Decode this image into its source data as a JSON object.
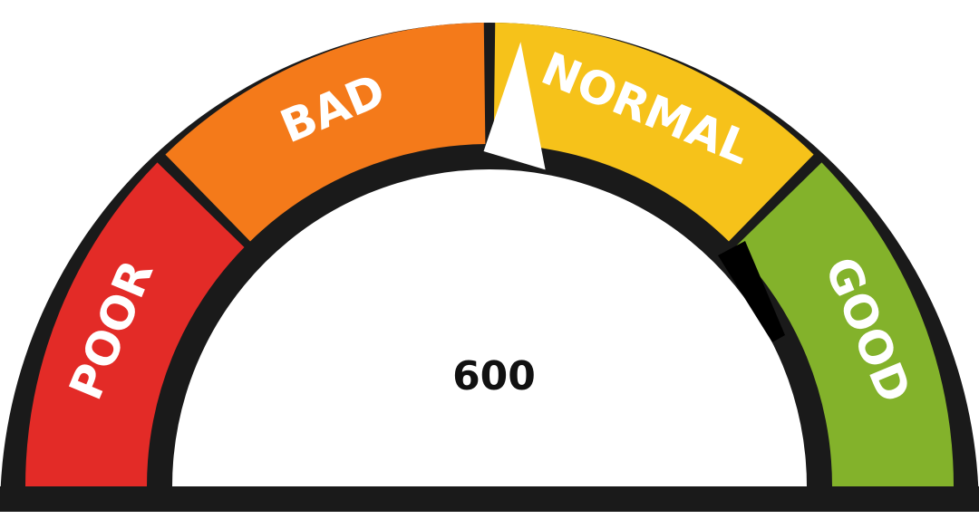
{
  "gauge": {
    "value_label": "600",
    "segments": [
      {
        "label": "POOR",
        "color": "#e32b27"
      },
      {
        "label": "BAD",
        "color": "#f47a1a"
      },
      {
        "label": "NORMAL",
        "color": "#f6c21a"
      },
      {
        "label": "GOOD",
        "color": "#83b22b"
      }
    ],
    "needle_fraction": 0.5,
    "outline_color": "#1a1a1a"
  }
}
